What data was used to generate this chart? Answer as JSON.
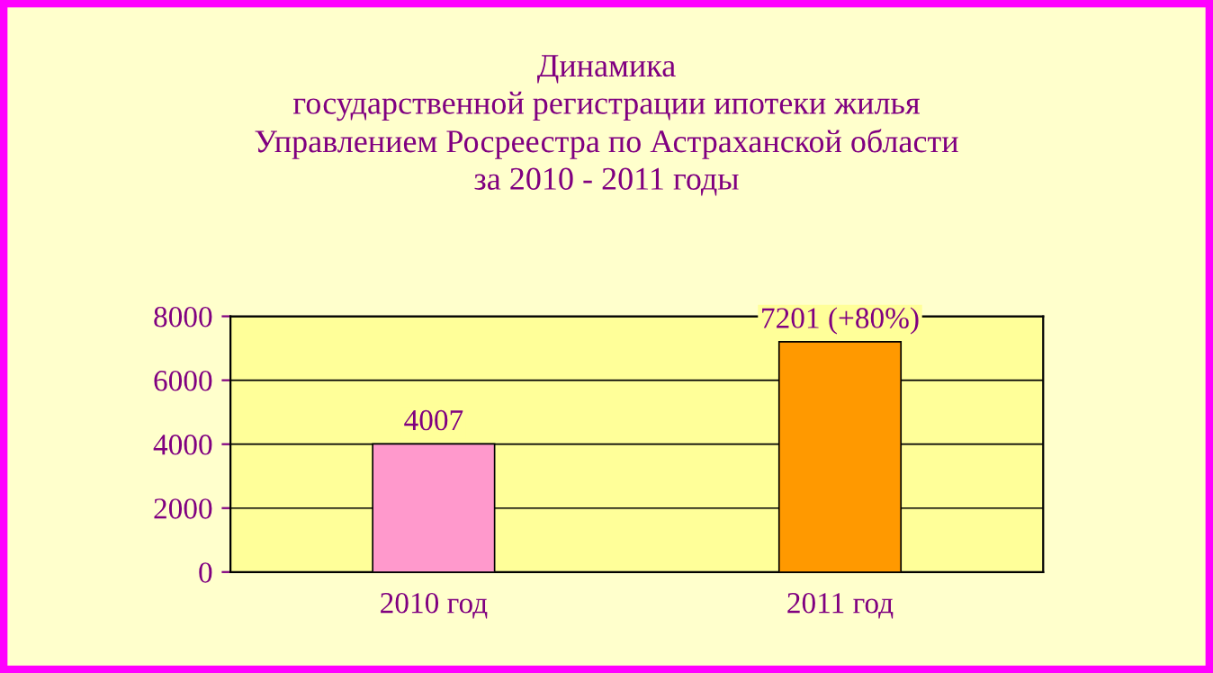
{
  "chart_data": {
    "type": "bar",
    "title": "Динамика\nгосударственной регистрации ипотеки жилья\nУправлением Росреестра по Астраханской области\nза 2010 - 2011 годы",
    "categories": [
      "2010 год",
      "2011 год"
    ],
    "values": [
      4007,
      7201
    ],
    "colors": [
      "#ff99cc",
      "#ff9900"
    ],
    "value_labels": [
      "4007",
      "7201 (+80%)"
    ],
    "ylim": [
      0,
      8000
    ],
    "yticks": [
      0,
      2000,
      4000,
      6000,
      8000
    ],
    "grid": "y",
    "legend": false
  }
}
